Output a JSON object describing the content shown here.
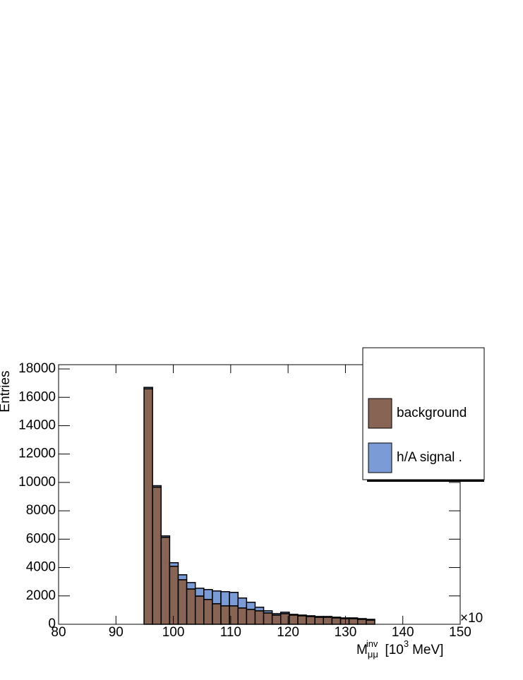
{
  "chart_data": {
    "type": "histogram",
    "y_label": "Entries",
    "x_label": {
      "base": "M",
      "sub": "μμ",
      "sup": "inv",
      "unit": "[10",
      "unit_sup": "3",
      "unit_end": "MeV]"
    },
    "x_exponent": "×10",
    "bins": [
      80,
      81.489,
      82.979,
      84.468,
      85.957,
      87.447,
      88.936,
      90.426,
      91.915,
      93.404,
      94.894,
      96.383,
      97.872,
      99.362,
      100.851,
      102.34,
      103.83,
      105.319,
      106.809,
      108.298,
      109.787,
      111.277,
      112.766,
      114.255,
      115.745,
      117.234,
      118.723,
      120.213,
      121.702,
      123.191,
      124.681,
      126.17,
      127.66,
      129.149,
      130.638,
      132.128,
      133.617,
      135.106,
      136.596,
      138.085,
      139.574,
      141.064,
      142.553,
      144.043,
      145.532,
      147.021,
      148.511,
      150
    ],
    "stacked": true,
    "series": [
      {
        "name": "background",
        "color": "#876454",
        "values": [
          0,
          0,
          0,
          0,
          0,
          0,
          0,
          0,
          0,
          0,
          16600,
          9670,
          6130,
          4090,
          3140,
          2490,
          1990,
          1750,
          1450,
          1300,
          1300,
          1150,
          1050,
          950,
          800,
          650,
          750,
          650,
          600,
          550,
          500,
          500,
          450,
          400,
          400,
          350,
          300,
          0,
          0,
          0,
          0,
          0,
          0,
          0,
          0,
          0,
          0
        ]
      },
      {
        "name": "h/A signal .",
        "color": "#7b9bd6",
        "values": [
          0,
          0,
          0,
          0,
          0,
          0,
          0,
          0,
          0,
          0,
          100,
          100,
          100,
          250,
          350,
          450,
          550,
          700,
          900,
          1000,
          950,
          700,
          500,
          250,
          150,
          100,
          100,
          50,
          50,
          50,
          50,
          50,
          50,
          50,
          50,
          50,
          50,
          0,
          0,
          0,
          0,
          0,
          0,
          0,
          0,
          0,
          0
        ]
      }
    ],
    "xlim": [
      80,
      150
    ],
    "ylim": [
      0,
      18300
    ],
    "xticks": [
      80,
      90,
      100,
      110,
      120,
      130,
      140,
      150
    ],
    "yticks": [
      0,
      2000,
      4000,
      6000,
      8000,
      10000,
      12000,
      14000,
      16000,
      18000
    ],
    "legend": "top-right"
  }
}
